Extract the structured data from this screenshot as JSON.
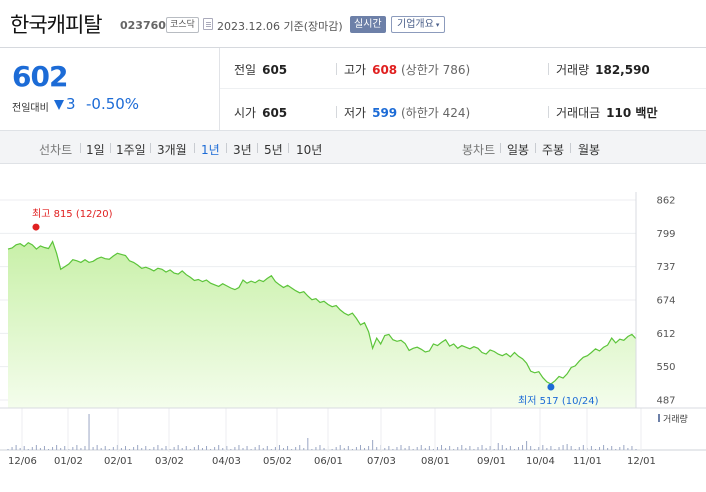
{
  "header": {
    "name": "한국캐피탈",
    "code": "023760",
    "market": "코스닥",
    "date_text": "2023.12.06 기준(장마감)",
    "realtime_label": "실시간",
    "company_label": "기업개요",
    "company_caret": "▾"
  },
  "price": {
    "current": "602",
    "change_label": "전일대비",
    "change_amount": "3",
    "change_rate": "-0.50%",
    "accent": "#1c6bd6"
  },
  "stats": {
    "prev_close_label": "전일",
    "prev_close": "605",
    "high_label": "고가",
    "high": "608",
    "upper_limit": "(상한가 786)",
    "volume_label": "거래량",
    "volume": "182,590",
    "open_label": "시가",
    "open": "605",
    "low_label": "저가",
    "low": "599",
    "lower_limit": "(하한가 424)",
    "amount_label": "거래대금",
    "amount": "110 백만"
  },
  "period_bar": {
    "line_title": "선차트",
    "line_periods": [
      "1일",
      "1주일",
      "3개월",
      "1년",
      "3년",
      "5년",
      "10년"
    ],
    "active_period": "1년",
    "candle_title": "봉차트",
    "candle_periods": [
      "일봉",
      "주봉",
      "월봉"
    ]
  },
  "chart_data": {
    "type": "area",
    "y_ticks": [
      "862",
      "799",
      "737",
      "674",
      "612",
      "550",
      "487"
    ],
    "ylim": [
      487,
      862
    ],
    "x_ticks": [
      "12/06",
      "01/02",
      "02/01",
      "03/02",
      "04/03",
      "05/02",
      "06/01",
      "07/03",
      "08/01",
      "09/01",
      "10/04",
      "11/01",
      "12/01"
    ],
    "max_annotation": "최고 815 (12/20)",
    "min_annotation": "최저 517 (10/24)",
    "max_value": 815,
    "min_value": 517,
    "volume_label": "거래량",
    "line_color": "#5cc43a",
    "max_color": "#e02020",
    "min_color": "#1c6bd6",
    "values": [
      770,
      772,
      778,
      780,
      775,
      782,
      778,
      770,
      776,
      773,
      771,
      784,
      762,
      732,
      737,
      742,
      750,
      748,
      745,
      750,
      745,
      747,
      752,
      755,
      752,
      751,
      757,
      762,
      760,
      758,
      748,
      745,
      740,
      734,
      736,
      733,
      729,
      734,
      732,
      727,
      731,
      725,
      723,
      729,
      722,
      717,
      711,
      713,
      709,
      712,
      706,
      703,
      700,
      705,
      701,
      697,
      694,
      698,
      712,
      706,
      710,
      707,
      712,
      709,
      715,
      720,
      709,
      703,
      698,
      702,
      697,
      692,
      688,
      690,
      682,
      675,
      677,
      670,
      672,
      666,
      662,
      664,
      656,
      650,
      646,
      650,
      640,
      628,
      632,
      615,
      584,
      603,
      592,
      608,
      610,
      600,
      597,
      599,
      593,
      580,
      584,
      586,
      582,
      577,
      579,
      592,
      589,
      595,
      600,
      588,
      592,
      584,
      589,
      586,
      583,
      587,
      584,
      576,
      573,
      581,
      578,
      573,
      570,
      574,
      568,
      576,
      569,
      564,
      556,
      541,
      538,
      540,
      529,
      521,
      517,
      523,
      531,
      528,
      536,
      548,
      551,
      560,
      567,
      570,
      576,
      583,
      579,
      586,
      590,
      603,
      594,
      601,
      599,
      606,
      610,
      602
    ]
  }
}
